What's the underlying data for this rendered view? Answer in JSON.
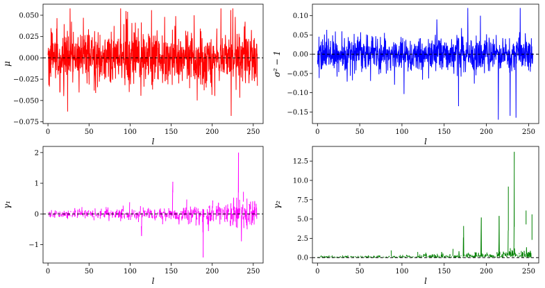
{
  "chart_data": [
    {
      "type": "line",
      "panel": "top-left",
      "xlabel": "l",
      "ylabel": "μ",
      "xlim": [
        -6,
        262
      ],
      "ylim": [
        -0.077,
        0.063
      ],
      "xticks": [
        0,
        50,
        100,
        150,
        200,
        250
      ],
      "xtick_labels": [
        "0",
        "50",
        "100",
        "150",
        "200",
        "250"
      ],
      "yticks": [
        -0.075,
        -0.05,
        -0.025,
        0.0,
        0.025,
        0.05
      ],
      "ytick_labels": [
        "−0.075",
        "−0.050",
        "−0.025",
        "0.000",
        "0.025",
        "0.050"
      ],
      "grid": false,
      "reference_line": 0,
      "color": "#ff0000",
      "series": [
        {
          "x_range": [
            0,
            255
          ],
          "points": 1024,
          "profile": "stationary",
          "noise_amplitude": 0.02,
          "clip": [
            -0.068,
            0.058
          ],
          "spikes": [
            {
              "x": 97,
              "y": 0.054
            },
            {
              "x": 225,
              "y": 0.058
            },
            {
              "x": 223,
              "y": -0.068
            },
            {
              "x": 24,
              "y": -0.063
            },
            {
              "x": 43,
              "y": 0.047
            },
            {
              "x": 142,
              "y": 0.048
            },
            {
              "x": 178,
              "y": 0.05
            }
          ]
        }
      ]
    },
    {
      "type": "line",
      "panel": "top-right",
      "xlabel": "l",
      "ylabel": "σ² − 1",
      "xlim": [
        -6,
        262
      ],
      "ylim": [
        -0.18,
        0.13
      ],
      "xticks": [
        0,
        50,
        100,
        150,
        200,
        250
      ],
      "xtick_labels": [
        "0",
        "50",
        "100",
        "150",
        "200",
        "250"
      ],
      "yticks": [
        -0.15,
        -0.1,
        -0.05,
        0.0,
        0.05,
        0.1
      ],
      "ytick_labels": [
        "−0.15",
        "−0.10",
        "−0.05",
        "0.00",
        "0.05",
        "0.10"
      ],
      "grid": false,
      "reference_line": 0,
      "color": "#0000ff",
      "series": [
        {
          "x_range": [
            0,
            255
          ],
          "points": 1024,
          "profile": "stationary",
          "noise_amplitude": 0.03,
          "clip": [
            -0.17,
            0.12
          ],
          "spikes": [
            {
              "x": 178,
              "y": 0.12
            },
            {
              "x": 240,
              "y": 0.12
            },
            {
              "x": 214,
              "y": -0.17
            },
            {
              "x": 235,
              "y": -0.165
            },
            {
              "x": 167,
              "y": -0.135
            },
            {
              "x": 228,
              "y": -0.16
            },
            {
              "x": 2,
              "y": -0.062
            },
            {
              "x": 193,
              "y": 0.1
            }
          ]
        }
      ]
    },
    {
      "type": "line",
      "panel": "bottom-left",
      "xlabel": "l",
      "ylabel": "γ₁",
      "xlim": [
        -6,
        262
      ],
      "ylim": [
        -1.6,
        2.2
      ],
      "xticks": [
        0,
        50,
        100,
        150,
        200,
        250
      ],
      "xtick_labels": [
        "0",
        "50",
        "100",
        "150",
        "200",
        "250"
      ],
      "yticks": [
        -1,
        0,
        1,
        2
      ],
      "ytick_labels": [
        "−1",
        "0",
        "1",
        "2"
      ],
      "grid": false,
      "reference_line": 0,
      "color": "#ff00ff",
      "series": [
        {
          "x_range": [
            0,
            255
          ],
          "points": 1024,
          "profile": "segments",
          "noise_amplitude": 0.12,
          "growth": 1.6,
          "clip": [
            -1.45,
            2.0
          ],
          "spikes": [
            {
              "x": 232,
              "y": 2.0,
              "y0": 0.7
            },
            {
              "x": 152,
              "y": 1.05,
              "y0": 0.7
            },
            {
              "x": 189,
              "y": -1.42,
              "y0": -0.6
            },
            {
              "x": 114,
              "y": -0.72,
              "y0": -0.4
            },
            {
              "x": 238,
              "y": 0.72,
              "y0": 0.4
            }
          ]
        }
      ]
    },
    {
      "type": "line",
      "panel": "bottom-right",
      "xlabel": "l",
      "ylabel": "γ₂",
      "xlim": [
        -6,
        262
      ],
      "ylim": [
        -0.7,
        14.4
      ],
      "xticks": [
        0,
        50,
        100,
        150,
        200,
        250
      ],
      "xtick_labels": [
        "0",
        "50",
        "100",
        "150",
        "200",
        "250"
      ],
      "yticks": [
        0,
        2.5,
        5,
        7.5,
        10,
        12.5
      ],
      "ytick_labels": [
        "0.0",
        "2.5",
        "5.0",
        "7.5",
        "10.0",
        "12.5"
      ],
      "grid": false,
      "reference_line": 0,
      "color": "#008000",
      "series": [
        {
          "x_range": [
            0,
            255
          ],
          "points": 1024,
          "profile": "growing-positive",
          "noise_amplitude": 0.15,
          "growth": 5.0,
          "clip": [
            -0.1,
            13.8
          ],
          "spikes": [
            {
              "x": 233,
              "y": 13.7,
              "y0": 4.0
            },
            {
              "x": 226,
              "y": 9.2,
              "y0": 3.5
            },
            {
              "x": 215,
              "y": 5.4,
              "y0": 2.0
            },
            {
              "x": 247,
              "y": 6.1,
              "y0": 4.3
            },
            {
              "x": 254,
              "y": 5.6,
              "y0": 2.3
            },
            {
              "x": 194,
              "y": 5.2,
              "y0": 2.8
            },
            {
              "x": 173,
              "y": 4.1,
              "y0": 2.6
            }
          ]
        }
      ]
    }
  ]
}
